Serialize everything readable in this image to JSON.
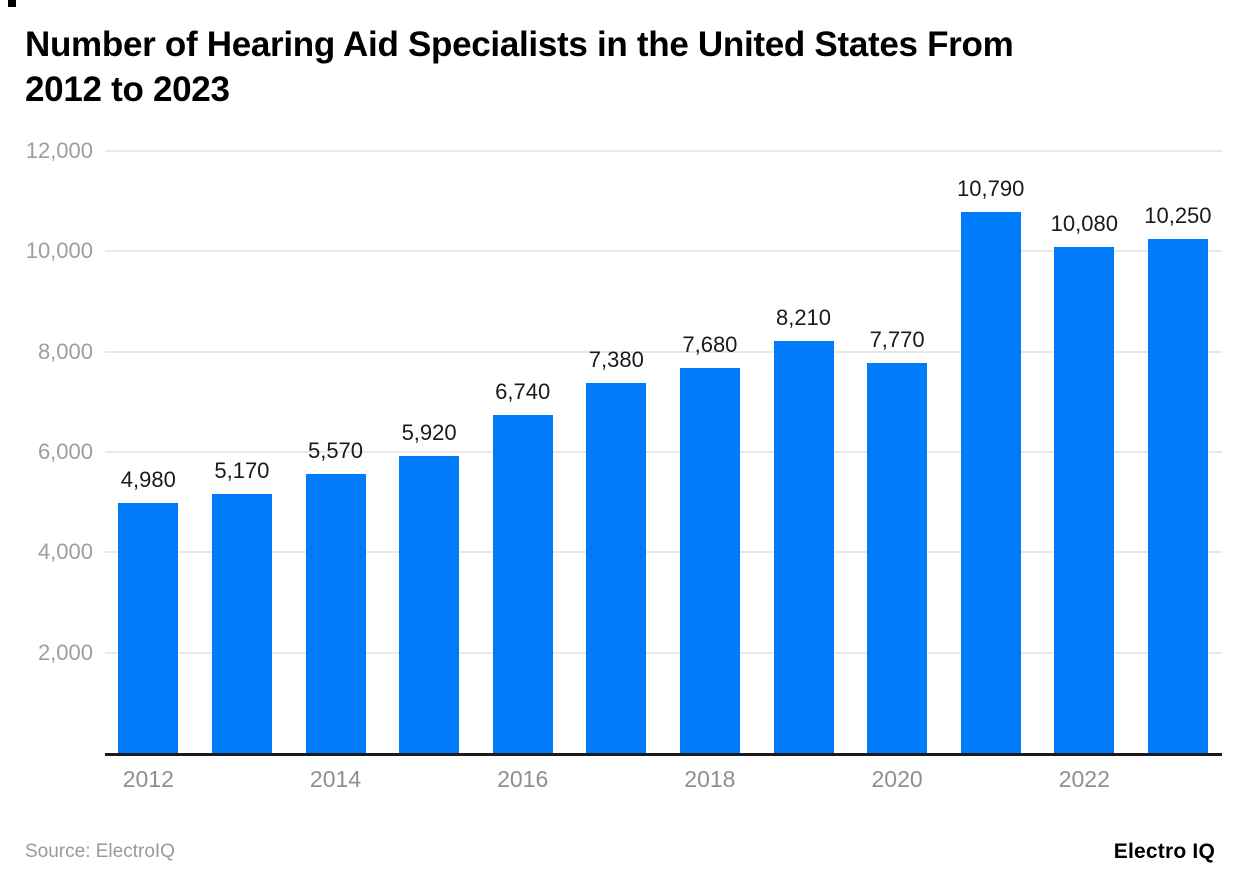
{
  "page": {
    "title_lines": [
      "Number of Hearing Aid Specialists in the United States From",
      "2012 to 2023"
    ],
    "source_label": "Source: ElectroIQ",
    "brand": "Electro IQ"
  },
  "chart_data": {
    "type": "bar",
    "title": "Number of Hearing Aid Specialists in the United States From 2012 to 2023",
    "categories": [
      "2012",
      "2013",
      "2014",
      "2015",
      "2016",
      "2017",
      "2018",
      "2019",
      "2020",
      "2021",
      "2022",
      "2023"
    ],
    "values": [
      4980,
      5170,
      5570,
      5920,
      6740,
      7380,
      7680,
      8210,
      7770,
      10790,
      10080,
      10250
    ],
    "value_labels": [
      "4,980",
      "5,170",
      "5,570",
      "5,920",
      "6,740",
      "7,380",
      "7,680",
      "8,210",
      "7,770",
      "10,790",
      "10,080",
      "10,250"
    ],
    "x_tick_labels": [
      "2012",
      "2014",
      "2016",
      "2018",
      "2020",
      "2022"
    ],
    "x_tick_every": 2,
    "y_ticks": [
      2000,
      4000,
      6000,
      8000,
      10000,
      12000
    ],
    "y_tick_labels": [
      "2,000",
      "4,000",
      "6,000",
      "8,000",
      "10,000",
      "12,000"
    ],
    "xlabel": "",
    "ylabel": "",
    "ylim": [
      0,
      12000
    ],
    "grid": true,
    "legend": false,
    "bar_color": "#007bfc",
    "grid_color": "#e8e8e8",
    "axis_label_color": "#9e9e9e",
    "value_label_color": "#1a1a1a"
  }
}
